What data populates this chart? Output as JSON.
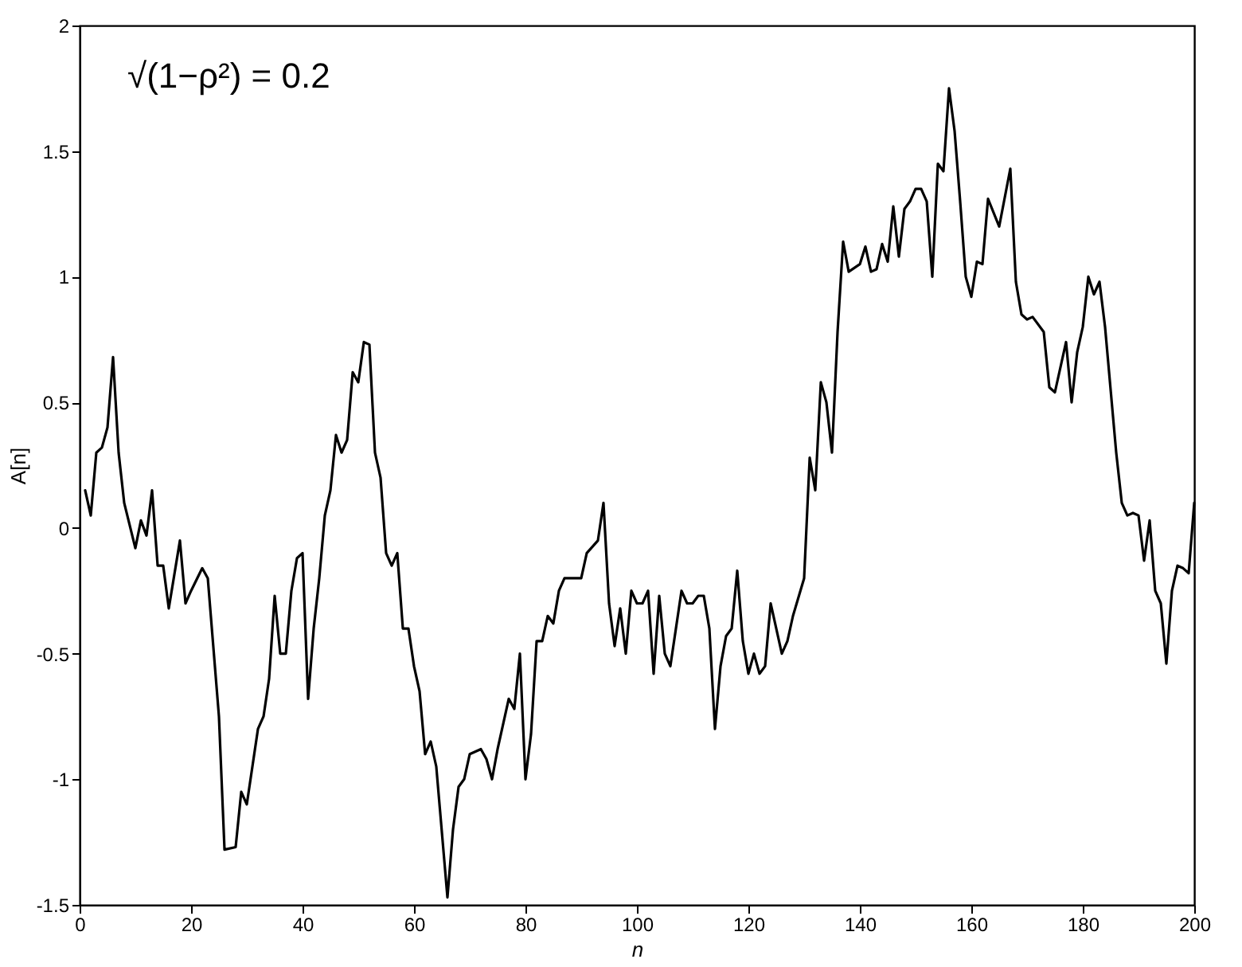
{
  "chart_data": {
    "type": "line",
    "xlabel": "n",
    "ylabel": "A[n]",
    "annotations": [
      "√(1−ρ²) = 0.2"
    ],
    "grid": false,
    "legend": false,
    "marker": "none",
    "line_style": "solid",
    "xlim": [
      0,
      200
    ],
    "xticks": [
      0,
      20,
      40,
      60,
      80,
      100,
      120,
      140,
      160,
      180,
      200
    ],
    "ylim": [
      -1.5,
      2
    ],
    "yticks": [
      -1.5,
      -1,
      -0.5,
      0,
      0.5,
      1,
      1.5,
      2
    ],
    "x": [
      1,
      2,
      3,
      4,
      5,
      6,
      7,
      8,
      10,
      11,
      12,
      13,
      14,
      15,
      16,
      18,
      19,
      20,
      22,
      23,
      25,
      26,
      28,
      29,
      30,
      31,
      32,
      33,
      34,
      35,
      36,
      37,
      38,
      39,
      40,
      41,
      42,
      43,
      44,
      45,
      46,
      47,
      48,
      49,
      50,
      51,
      52,
      53,
      54,
      55,
      56,
      57,
      58,
      59,
      60,
      61,
      62,
      63,
      64,
      66,
      67,
      68,
      69,
      70,
      72,
      73,
      74,
      75,
      77,
      78,
      79,
      80,
      81,
      82,
      83,
      84,
      85,
      86,
      87,
      90,
      91,
      93,
      94,
      95,
      96,
      97,
      98,
      99,
      100,
      101,
      102,
      103,
      104,
      105,
      106,
      107,
      108,
      109,
      110,
      111,
      112,
      113,
      114,
      115,
      116,
      117,
      118,
      119,
      120,
      121,
      122,
      123,
      124,
      126,
      127,
      128,
      130,
      131,
      132,
      133,
      134,
      135,
      136,
      137,
      138,
      140,
      141,
      142,
      143,
      144,
      145,
      146,
      147,
      148,
      149,
      150,
      151,
      152,
      153,
      154,
      155,
      156,
      157,
      158,
      159,
      160,
      161,
      162,
      163,
      165,
      167,
      168,
      169,
      170,
      171,
      173,
      174,
      175,
      177,
      178,
      179,
      180,
      181,
      182,
      183,
      184,
      186,
      187,
      188,
      189,
      190,
      191,
      192,
      193,
      194,
      195,
      196,
      197,
      198,
      199,
      200
    ],
    "series": [
      {
        "color": "#000000",
        "values": [
          0.15,
          0.05,
          0.3,
          0.32,
          0.4,
          0.68,
          0.3,
          0.1,
          -0.08,
          0.03,
          -0.03,
          0.15,
          -0.15,
          -0.15,
          -0.32,
          -0.05,
          -0.3,
          -0.25,
          -0.16,
          -0.2,
          -0.75,
          -1.28,
          -1.27,
          -1.05,
          -1.1,
          -0.95,
          -0.8,
          -0.75,
          -0.6,
          -0.27,
          -0.5,
          -0.5,
          -0.25,
          -0.12,
          -0.1,
          -0.68,
          -0.4,
          -0.2,
          0.05,
          0.15,
          0.37,
          0.3,
          0.35,
          0.62,
          0.58,
          0.74,
          0.73,
          0.3,
          0.2,
          -0.1,
          -0.15,
          -0.1,
          -0.4,
          -0.4,
          -0.55,
          -0.65,
          -0.9,
          -0.85,
          -0.95,
          -1.47,
          -1.2,
          -1.03,
          -1.0,
          -0.9,
          -0.88,
          -0.92,
          -1.0,
          -0.88,
          -0.68,
          -0.72,
          -0.5,
          -1.0,
          -0.82,
          -0.45,
          -0.45,
          -0.35,
          -0.38,
          -0.25,
          -0.2,
          -0.2,
          -0.1,
          -0.05,
          0.1,
          -0.3,
          -0.47,
          -0.32,
          -0.5,
          -0.25,
          -0.3,
          -0.3,
          -0.25,
          -0.58,
          -0.27,
          -0.5,
          -0.55,
          -0.4,
          -0.25,
          -0.3,
          -0.3,
          -0.27,
          -0.27,
          -0.4,
          -0.8,
          -0.55,
          -0.43,
          -0.4,
          -0.17,
          -0.45,
          -0.58,
          -0.5,
          -0.58,
          -0.55,
          -0.3,
          -0.5,
          -0.45,
          -0.35,
          -0.2,
          0.28,
          0.15,
          0.58,
          0.5,
          0.3,
          0.78,
          1.14,
          1.02,
          1.05,
          1.12,
          1.02,
          1.03,
          1.13,
          1.06,
          1.28,
          1.08,
          1.27,
          1.3,
          1.35,
          1.35,
          1.3,
          1.0,
          1.45,
          1.42,
          1.75,
          1.58,
          1.3,
          1.0,
          0.92,
          1.06,
          1.05,
          1.31,
          1.2,
          1.43,
          0.98,
          0.85,
          0.83,
          0.84,
          0.78,
          0.56,
          0.54,
          0.74,
          0.5,
          0.7,
          0.8,
          1.0,
          0.93,
          0.98,
          0.8,
          0.3,
          0.1,
          0.05,
          0.06,
          0.05,
          -0.13,
          0.03,
          -0.25,
          -0.3,
          -0.54,
          -0.25,
          -0.15,
          -0.16,
          -0.18,
          0.1
        ]
      }
    ]
  }
}
